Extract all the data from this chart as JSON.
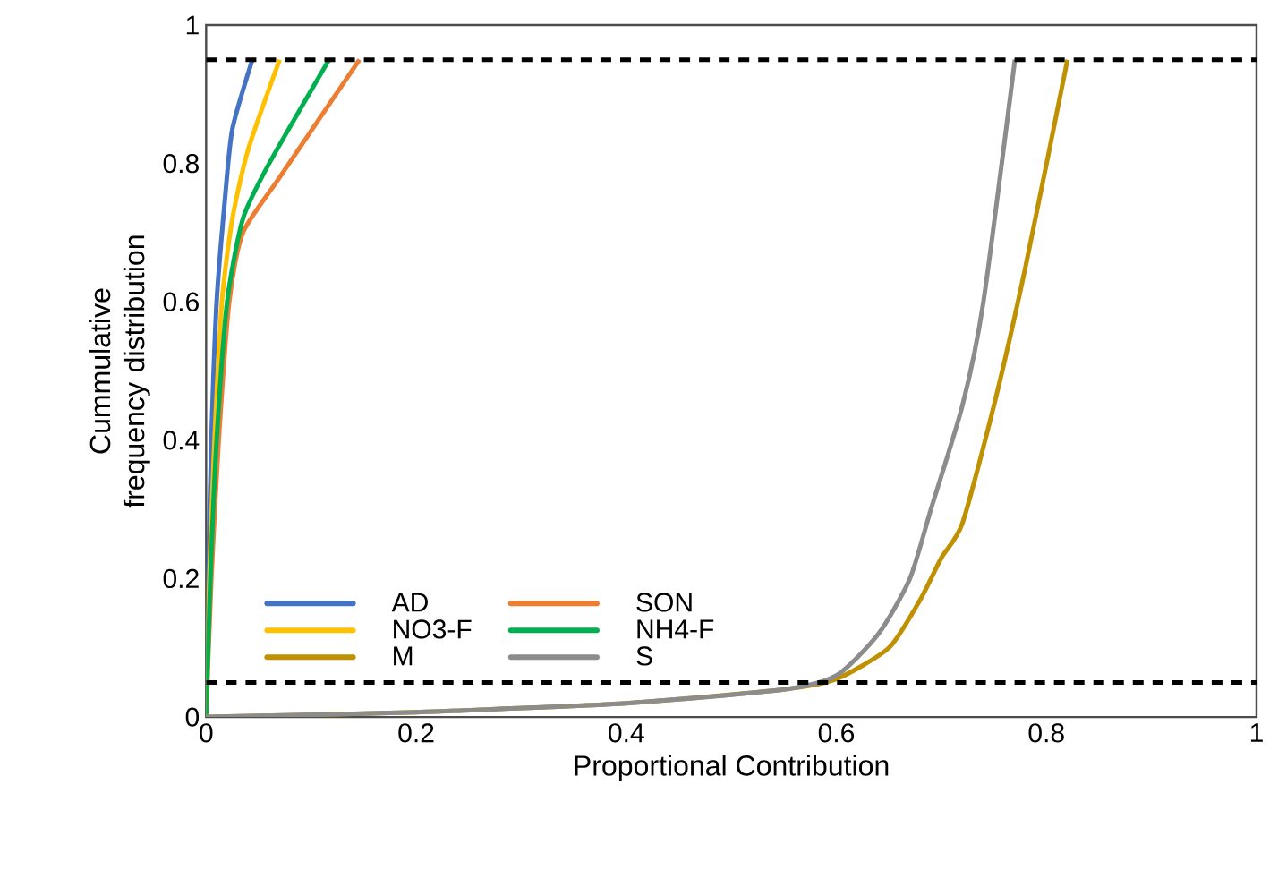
{
  "chart_data": {
    "type": "line",
    "xlabel": "Proportional  Contribution",
    "ylabel": "Cummulative  frequency distribution",
    "xlim": [
      0,
      1
    ],
    "ylim": [
      0,
      1
    ],
    "xticks": [
      0,
      0.2,
      0.4,
      0.6,
      0.8,
      1
    ],
    "yticks": [
      0,
      0.2,
      0.4,
      0.6,
      0.8,
      1
    ],
    "grid": false,
    "legend": "bottom left",
    "marker": "none",
    "line_style": "solid",
    "series": [
      {
        "name": "AD",
        "color": "#4472c4",
        "x": [
          0,
          0.002,
          0.005,
          0.01,
          0.018,
          0.025,
          0.044
        ],
        "values": [
          0,
          0.2,
          0.4,
          0.6,
          0.75,
          0.85,
          0.95
        ]
      },
      {
        "name": "SON",
        "color": "#ed7d31",
        "x": [
          0,
          0.005,
          0.012,
          0.022,
          0.035,
          0.07,
          0.146
        ],
        "values": [
          0,
          0.2,
          0.4,
          0.6,
          0.7,
          0.78,
          0.95
        ]
      },
      {
        "name": "NO3-F",
        "color": "#ffc000",
        "x": [
          0,
          0.003,
          0.008,
          0.015,
          0.025,
          0.04,
          0.07
        ],
        "values": [
          0,
          0.2,
          0.4,
          0.6,
          0.72,
          0.82,
          0.95
        ]
      },
      {
        "name": "NH4-F",
        "color": "#00b050",
        "x": [
          0,
          0.004,
          0.01,
          0.02,
          0.035,
          0.06,
          0.117
        ],
        "values": [
          0,
          0.2,
          0.4,
          0.6,
          0.72,
          0.8,
          0.95
        ]
      },
      {
        "name": "M",
        "color": "#bf9000",
        "x": [
          0,
          0.2,
          0.4,
          0.55,
          0.6,
          0.65,
          0.68,
          0.7,
          0.72,
          0.75,
          0.78,
          0.82
        ],
        "values": [
          0,
          0.007,
          0.02,
          0.04,
          0.055,
          0.1,
          0.17,
          0.23,
          0.28,
          0.45,
          0.65,
          0.95
        ]
      },
      {
        "name": "S",
        "color": "#8c8c8c",
        "x": [
          0,
          0.2,
          0.4,
          0.55,
          0.6,
          0.64,
          0.67,
          0.69,
          0.72,
          0.74,
          0.77
        ],
        "values": [
          0,
          0.007,
          0.02,
          0.04,
          0.06,
          0.12,
          0.2,
          0.3,
          0.45,
          0.6,
          0.95
        ]
      }
    ],
    "ref_lines": [
      {
        "axis": "y",
        "value": 0.95,
        "color": "#000000",
        "line_style": "dashed"
      },
      {
        "axis": "y",
        "value": 0.05,
        "color": "#000000",
        "line_style": "dashed"
      }
    ]
  }
}
